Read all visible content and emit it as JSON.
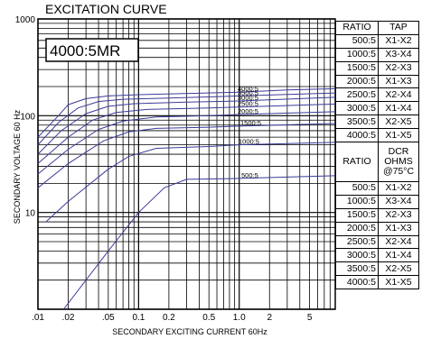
{
  "chart_data": {
    "type": "line",
    "title": "EXCITATION CURVE",
    "inset_label": "4000:5MR",
    "xlabel": "SECONDARY EXCITING CURRENT 60Hz",
    "ylabel": "SECONDARY VOLTAGE 60 Hz",
    "x_scale": "log",
    "y_scale": "log",
    "xlim": [
      0.01,
      9
    ],
    "ylim": [
      1,
      1000
    ],
    "grid": true,
    "x_ticks": [
      {
        "value": 0.01,
        "label": ".01"
      },
      {
        "value": 0.02,
        "label": ".02"
      },
      {
        "value": 0.05,
        "label": ".05"
      },
      {
        "value": 0.1,
        "label": "0.1"
      },
      {
        "value": 0.2,
        "label": "0.2"
      },
      {
        "value": 0.5,
        "label": "0.5"
      },
      {
        "value": 1,
        "label": "1.0"
      },
      {
        "value": 2,
        "label": "2"
      },
      {
        "value": 5,
        "label": "5"
      }
    ],
    "y_ticks": [
      {
        "value": 10,
        "label": "10"
      },
      {
        "value": 100,
        "label": "100"
      },
      {
        "value": 1000,
        "label": "1000"
      }
    ],
    "series": [
      {
        "name": "4000:5",
        "points": [
          [
            0.01,
            60
          ],
          [
            0.016,
            100
          ],
          [
            0.02,
            130
          ],
          [
            0.03,
            150
          ],
          [
            0.05,
            160
          ],
          [
            0.1,
            165
          ],
          [
            1,
            175
          ],
          [
            3,
            185
          ],
          [
            9,
            190
          ]
        ]
      },
      {
        "name": "3500:5",
        "points": [
          [
            0.01,
            50
          ],
          [
            0.016,
            85
          ],
          [
            0.025,
            120
          ],
          [
            0.04,
            140
          ],
          [
            0.07,
            148
          ],
          [
            0.2,
            152
          ],
          [
            1,
            160
          ],
          [
            9,
            172
          ]
        ]
      },
      {
        "name": "3000:5",
        "points": [
          [
            0.01,
            40
          ],
          [
            0.017,
            70
          ],
          [
            0.03,
            105
          ],
          [
            0.05,
            125
          ],
          [
            0.09,
            133
          ],
          [
            0.3,
            138
          ],
          [
            1,
            142
          ],
          [
            9,
            155
          ]
        ]
      },
      {
        "name": "2500:5",
        "points": [
          [
            0.01,
            32
          ],
          [
            0.02,
            60
          ],
          [
            0.035,
            90
          ],
          [
            0.06,
            108
          ],
          [
            0.12,
            116
          ],
          [
            0.5,
            120
          ],
          [
            1,
            123
          ],
          [
            9,
            132
          ]
        ]
      },
      {
        "name": "2000:5",
        "points": [
          [
            0.01,
            25
          ],
          [
            0.02,
            45
          ],
          [
            0.04,
            72
          ],
          [
            0.07,
            88
          ],
          [
            0.15,
            97
          ],
          [
            0.5,
            100
          ],
          [
            1,
            103
          ],
          [
            9,
            110
          ]
        ]
      },
      {
        "name": "1500:5",
        "points": [
          [
            0.01,
            18
          ],
          [
            0.02,
            32
          ],
          [
            0.045,
            55
          ],
          [
            0.08,
            68
          ],
          [
            0.15,
            74
          ],
          [
            0.5,
            76
          ],
          [
            1,
            78
          ],
          [
            9,
            83
          ]
        ]
      },
      {
        "name": "1000:5",
        "points": [
          [
            0.012,
            8
          ],
          [
            0.02,
            13
          ],
          [
            0.05,
            28
          ],
          [
            0.08,
            38
          ],
          [
            0.15,
            46
          ],
          [
            0.5,
            48
          ],
          [
            1,
            50
          ],
          [
            9,
            53
          ]
        ]
      },
      {
        "name": "500:5",
        "points": [
          [
            0.018,
            1
          ],
          [
            0.05,
            4
          ],
          [
            0.1,
            10
          ],
          [
            0.18,
            18
          ],
          [
            0.3,
            22
          ],
          [
            1,
            22.5
          ],
          [
            9,
            24
          ]
        ]
      }
    ]
  },
  "table": {
    "header": [
      "RATIO",
      "TAP"
    ],
    "rows": [
      [
        "500:5",
        "X1-X2"
      ],
      [
        "1000:5",
        "X3-X4"
      ],
      [
        "1500:5",
        "X2-X3"
      ],
      [
        "2000:5",
        "X1-X3"
      ],
      [
        "2500:5",
        "X2-X4"
      ],
      [
        "3000:5",
        "X1-X4"
      ],
      [
        "3500:5",
        "X2-X5"
      ],
      [
        "4000:5",
        "X1-X5"
      ]
    ],
    "dcr_header": [
      "RATIO",
      "DCR",
      "OHMS",
      "@75°C"
    ],
    "dcr_rows": [
      [
        "500:5",
        "X1-X2"
      ],
      [
        "1000:5",
        "X3-X4"
      ],
      [
        "1500:5",
        "X2-X3"
      ],
      [
        "2000:5",
        "X1-X3"
      ],
      [
        "2500:5",
        "X2-X4"
      ],
      [
        "3000:5",
        "X1-X4"
      ],
      [
        "3500:5",
        "X2-X5"
      ],
      [
        "4000:5",
        "X1-X5"
      ]
    ]
  },
  "colors": {
    "curve": "#3b3b9a",
    "grid": "#000000",
    "background": "#ffffff"
  }
}
